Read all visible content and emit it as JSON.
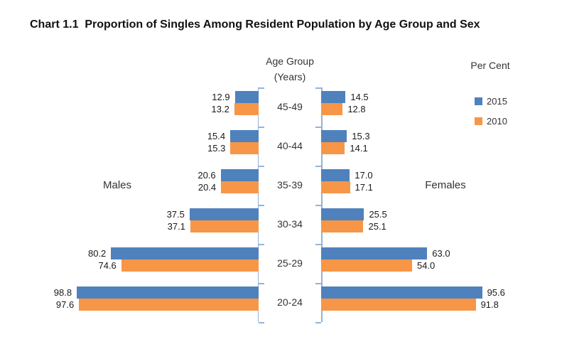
{
  "title": "Chart 1.1  Proportion of Singles Among Resident Population by Age Group and Sex",
  "chart_data": {
    "type": "bar",
    "variant": "population_pyramid",
    "title": "Chart 1.1  Proportion of Singles Among Resident Population by Age Group and Sex",
    "center_axis_label_line1": "Age Group",
    "center_axis_label_line2": "(Years)",
    "value_unit_label": "Per Cent",
    "left_side_label": "Males",
    "right_side_label": "Females",
    "categories": [
      "45-49",
      "40-44",
      "35-39",
      "30-34",
      "25-29",
      "20-24"
    ],
    "legend": [
      {
        "name": "2015",
        "color": "#4F81BD"
      },
      {
        "name": "2010",
        "color": "#F79646"
      }
    ],
    "series": [
      {
        "side": "Males",
        "name": "2015",
        "values": [
          12.9,
          15.4,
          20.6,
          37.5,
          80.2,
          98.8
        ]
      },
      {
        "side": "Males",
        "name": "2010",
        "values": [
          13.2,
          15.3,
          20.4,
          37.1,
          74.6,
          97.6
        ]
      },
      {
        "side": "Females",
        "name": "2015",
        "values": [
          14.5,
          15.3,
          17.0,
          25.5,
          63.0,
          95.6
        ]
      },
      {
        "side": "Females",
        "name": "2010",
        "values": [
          12.8,
          14.1,
          17.1,
          25.1,
          54.0,
          91.8
        ]
      }
    ],
    "xlim_each_side": [
      0,
      100
    ],
    "value_label_decimals": 1,
    "grid": false,
    "legend_position": "top-right"
  },
  "colors": {
    "series_2015": "#4F81BD",
    "series_2010": "#F79646",
    "axis_line": "#95B3D7",
    "background": "#FFFFFF"
  }
}
